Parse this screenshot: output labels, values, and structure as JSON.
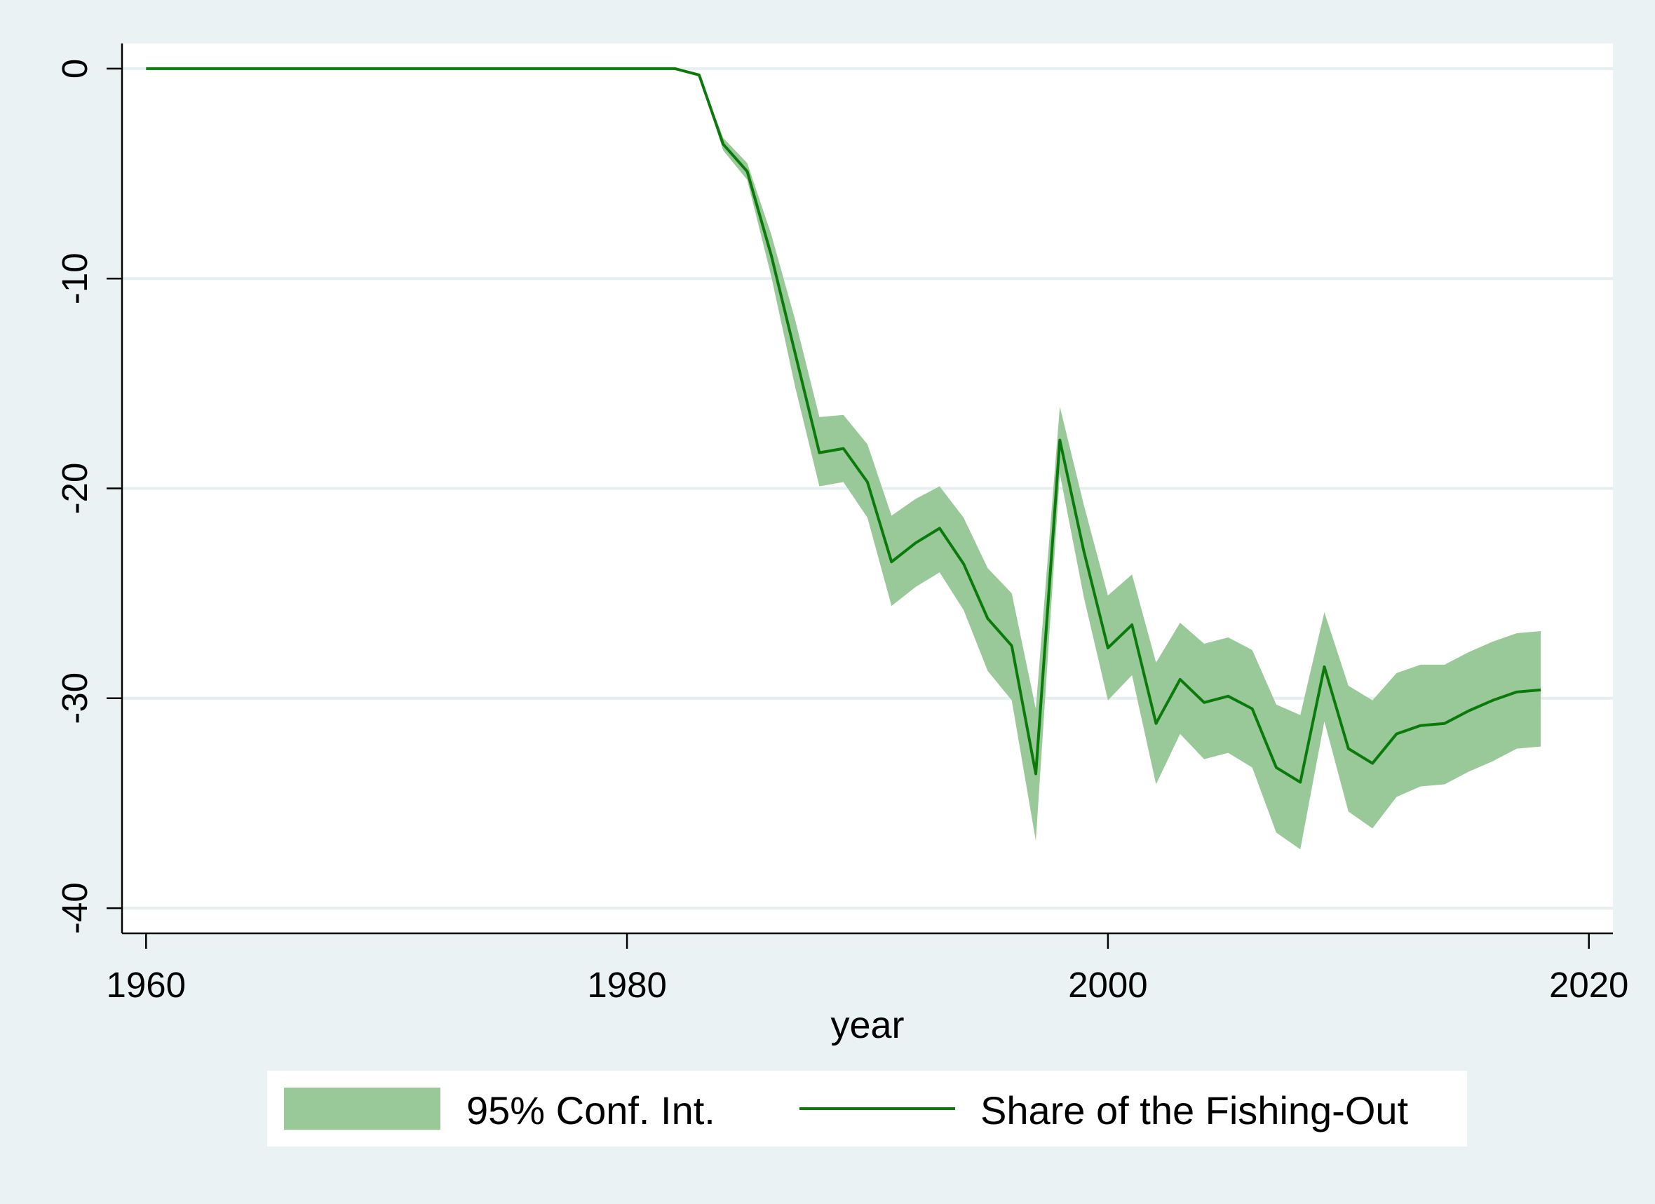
{
  "chart_data": {
    "type": "line",
    "xlabel": "year",
    "ylabel": "",
    "xlim": [
      1959,
      2021
    ],
    "ylim": [
      -41.2,
      1.2
    ],
    "x_ticks": [
      1960,
      1980,
      2000,
      2020
    ],
    "x_tick_labels": [
      "1960",
      "1980",
      "2000",
      "2020"
    ],
    "y_ticks": [
      0,
      -10,
      -20,
      -30,
      -40
    ],
    "y_tick_labels": [
      "0",
      "-10",
      "-20",
      "-30",
      "-40"
    ],
    "grid": "horizontal",
    "legend_position": "bottom",
    "colors": {
      "line": "#0a7a0a",
      "band": "#99c999",
      "plot_bg": "#ffffff",
      "page_bg": "#eaf2f3",
      "grid": "#e6efef"
    },
    "series": [
      {
        "name": "Share of the Fishing-Out",
        "role": "line",
        "x": [
          1960,
          1961,
          1962,
          1963,
          1964,
          1965,
          1966,
          1967,
          1968,
          1969,
          1970,
          1971,
          1972,
          1973,
          1974,
          1975,
          1976,
          1977,
          1978,
          1979,
          1980,
          1981,
          1982,
          1983,
          1984,
          1985,
          1986,
          1987,
          1988,
          1989,
          1990,
          1991,
          1992,
          1993,
          1994,
          1995,
          1996,
          1997,
          1998,
          1999,
          2000,
          2001,
          2002,
          2003,
          2004,
          2005,
          2006,
          2007,
          2008,
          2009,
          2010,
          2011,
          2012,
          2013,
          2014,
          2015,
          2016,
          2017,
          2018
        ],
        "y": [
          0,
          0,
          0,
          0,
          0,
          0,
          0,
          0,
          0,
          0,
          0,
          0,
          0,
          0,
          0,
          0,
          0,
          0,
          0,
          0,
          0,
          0,
          0,
          -0.3,
          -3.6,
          -4.9,
          -8.9,
          -13.6,
          -18.3,
          -18.1,
          -19.7,
          -23.5,
          -22.6,
          -21.9,
          -23.6,
          -26.2,
          -27.5,
          -33.6,
          -17.7,
          -23.0,
          -27.6,
          -26.5,
          -31.2,
          -29.1,
          -30.2,
          -29.9,
          -30.5,
          -33.3,
          -34.0,
          -28.5,
          -32.4,
          -33.1,
          -31.7,
          -31.3,
          -31.2,
          -30.6,
          -30.1,
          -29.7,
          -29.6
        ]
      },
      {
        "name": "95% Conf. Int.",
        "role": "band",
        "x": [
          1960,
          1961,
          1962,
          1963,
          1964,
          1965,
          1966,
          1967,
          1968,
          1969,
          1970,
          1971,
          1972,
          1973,
          1974,
          1975,
          1976,
          1977,
          1978,
          1979,
          1980,
          1981,
          1982,
          1983,
          1984,
          1985,
          1986,
          1987,
          1988,
          1989,
          1990,
          1991,
          1992,
          1993,
          1994,
          1995,
          1996,
          1997,
          1998,
          1999,
          2000,
          2001,
          2002,
          2003,
          2004,
          2005,
          2006,
          2007,
          2008,
          2009,
          2010,
          2011,
          2012,
          2013,
          2014,
          2015,
          2016,
          2017,
          2018
        ],
        "lower": [
          0,
          0,
          0,
          0,
          0,
          0,
          0,
          0,
          0,
          0,
          0,
          0,
          0,
          0,
          0,
          0,
          0,
          0,
          0,
          0,
          0,
          0,
          0,
          -0.3,
          -3.9,
          -5.3,
          -9.9,
          -15.2,
          -19.9,
          -19.7,
          -21.4,
          -25.6,
          -24.7,
          -24.0,
          -25.8,
          -28.7,
          -30.1,
          -36.8,
          -19.3,
          -25.2,
          -30.1,
          -28.9,
          -34.1,
          -31.7,
          -32.9,
          -32.6,
          -33.3,
          -36.4,
          -37.2,
          -31.1,
          -35.4,
          -36.2,
          -34.7,
          -34.2,
          -34.1,
          -33.5,
          -33.0,
          -32.4,
          -32.3
        ],
        "upper": [
          0,
          0,
          0,
          0,
          0,
          0,
          0,
          0,
          0,
          0,
          0,
          0,
          0,
          0,
          0,
          0,
          0,
          0,
          0,
          0,
          0,
          0,
          0,
          -0.3,
          -3.3,
          -4.5,
          -7.9,
          -12.0,
          -16.6,
          -16.5,
          -17.9,
          -21.3,
          -20.5,
          -19.9,
          -21.4,
          -23.8,
          -25.0,
          -30.5,
          -16.1,
          -20.8,
          -25.1,
          -24.1,
          -28.3,
          -26.4,
          -27.4,
          -27.1,
          -27.7,
          -30.3,
          -30.8,
          -25.9,
          -29.4,
          -30.1,
          -28.8,
          -28.4,
          -28.4,
          -27.8,
          -27.3,
          -26.9,
          -26.8
        ]
      }
    ]
  },
  "legend": {
    "band_label": "95% Conf. Int.",
    "line_label": "Share of the Fishing-Out"
  }
}
